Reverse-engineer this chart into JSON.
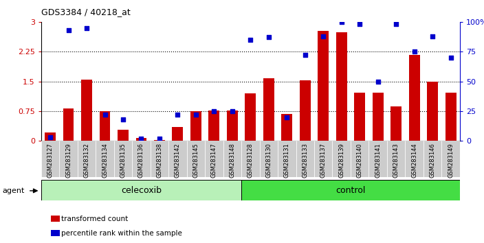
{
  "title": "GDS3384 / 40218_at",
  "categories": [
    "GSM283127",
    "GSM283129",
    "GSM283132",
    "GSM283134",
    "GSM283135",
    "GSM283136",
    "GSM283138",
    "GSM283142",
    "GSM283145",
    "GSM283147",
    "GSM283148",
    "GSM283128",
    "GSM283130",
    "GSM283131",
    "GSM283133",
    "GSM283137",
    "GSM283139",
    "GSM283140",
    "GSM283141",
    "GSM283143",
    "GSM283144",
    "GSM283146",
    "GSM283149"
  ],
  "bar_values": [
    0.22,
    0.82,
    1.55,
    0.75,
    0.28,
    0.07,
    0.02,
    0.35,
    0.75,
    0.77,
    0.77,
    1.2,
    1.58,
    0.68,
    1.52,
    2.78,
    2.73,
    1.22,
    1.22,
    0.87,
    2.17,
    1.5,
    1.22
  ],
  "dot_values": [
    3.0,
    93.0,
    95.0,
    22.0,
    18.0,
    2.0,
    2.0,
    22.0,
    22.0,
    25.0,
    25.0,
    85.0,
    87.0,
    20.0,
    72.0,
    88.0,
    100.0,
    98.0,
    50.0,
    98.0,
    75.0,
    88.0,
    70.0
  ],
  "celecoxib_count": 11,
  "control_count": 12,
  "bar_color": "#cc0000",
  "dot_color": "#0000cc",
  "ylim_left": [
    0,
    3.0
  ],
  "ylim_right": [
    0,
    100
  ],
  "yticks_left": [
    0,
    0.75,
    1.5,
    2.25,
    3.0
  ],
  "ytick_labels_left": [
    "0",
    "0.75",
    "1.5",
    "2.25",
    "3"
  ],
  "ytick_labels_right": [
    "0",
    "25",
    "50",
    "75",
    "100%"
  ],
  "hlines": [
    0.75,
    1.5,
    2.25
  ],
  "agent_label": "agent",
  "group1_label": "celecoxib",
  "group2_label": "control",
  "legend_bar": "transformed count",
  "legend_dot": "percentile rank within the sample",
  "bg_xticklabels": "#cccccc",
  "bg_group1": "#b8f0b8",
  "bg_group2": "#44dd44",
  "fig_bg": "#f0f0f0"
}
